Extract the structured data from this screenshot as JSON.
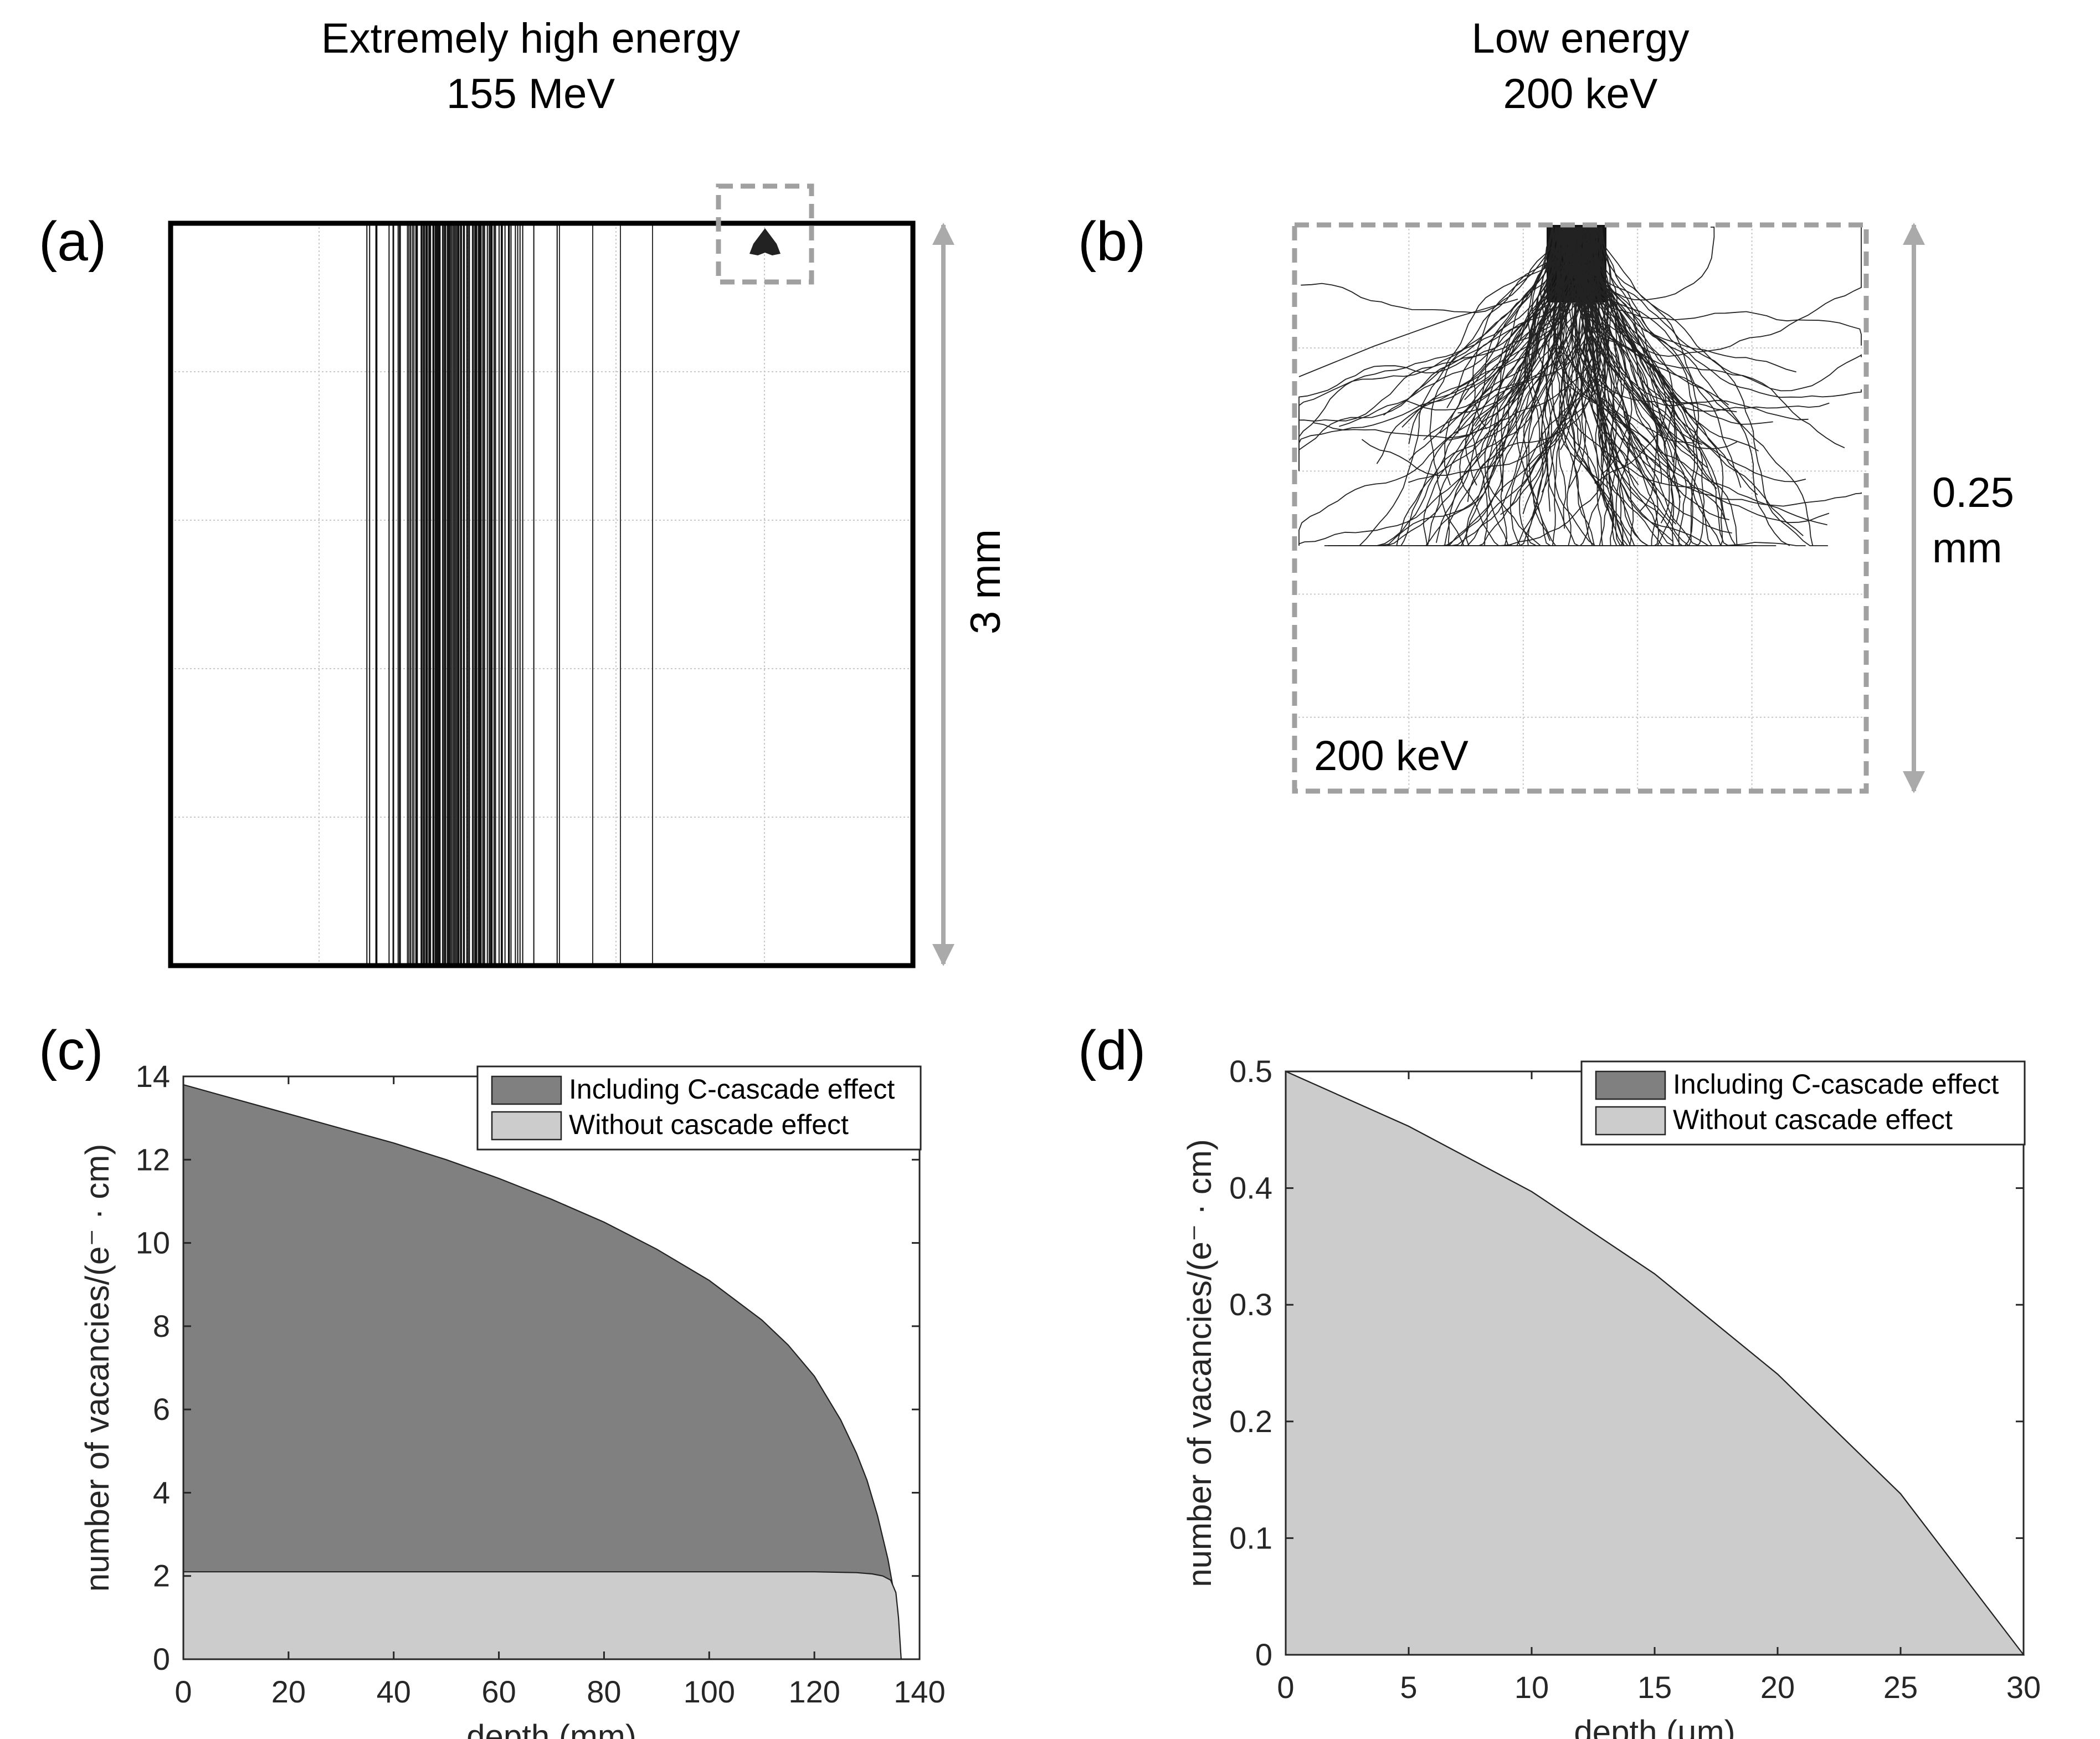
{
  "columns": {
    "left": {
      "line1": "Extremely high energy",
      "line2": "155 MeV"
    },
    "right": {
      "line1": "Low energy",
      "line2": "200 keV"
    }
  },
  "panels": {
    "a": {
      "label": "(a)",
      "scale_label": "3 mm"
    },
    "b": {
      "label": "(b)",
      "scale_label_line1": "0.25",
      "scale_label_line2": "mm",
      "inset_label": "200 keV"
    },
    "c": {
      "label": "(c)"
    },
    "d": {
      "label": "(d)"
    }
  },
  "colors": {
    "including": "#808080",
    "without": "#cccccc",
    "scale_arrow": "#aaaaaa",
    "inset_box": "#a0a0a0",
    "grid": "#c8c8c8"
  },
  "chart_data": [
    {
      "panel": "c",
      "type": "area",
      "title": "",
      "xlabel": "depth (mm)",
      "ylabel": "number of vacancies/(e⁻ · cm)",
      "xlim": [
        0,
        140
      ],
      "ylim": [
        0,
        14
      ],
      "xticks": [
        0,
        20,
        40,
        60,
        80,
        100,
        120,
        140
      ],
      "yticks": [
        0,
        2,
        4,
        6,
        8,
        10,
        12,
        14
      ],
      "legend": {
        "position": "top-right",
        "entries": [
          "Including C-cascade effect",
          "Without cascade effect"
        ]
      },
      "series": [
        {
          "name": "Including C-cascade effect",
          "color": "#808080",
          "x": [
            0,
            10,
            20,
            30,
            40,
            50,
            60,
            70,
            80,
            90,
            100,
            110,
            115,
            120,
            125,
            128,
            130,
            132,
            134,
            135,
            136,
            136.5
          ],
          "y": [
            13.8,
            13.45,
            13.1,
            12.75,
            12.4,
            12.0,
            11.55,
            11.05,
            10.5,
            9.85,
            9.1,
            8.15,
            7.55,
            6.8,
            5.75,
            4.95,
            4.3,
            3.45,
            2.4,
            1.7,
            0.8,
            0
          ]
        },
        {
          "name": "Without cascade effect",
          "color": "#cccccc",
          "x": [
            0,
            20,
            40,
            60,
            80,
            100,
            120,
            128,
            131,
            133,
            134.5,
            135.5,
            136,
            136.5
          ],
          "y": [
            2.1,
            2.1,
            2.1,
            2.1,
            2.1,
            2.1,
            2.1,
            2.08,
            2.05,
            2.0,
            1.9,
            1.6,
            1.0,
            0
          ]
        }
      ]
    },
    {
      "panel": "d",
      "type": "area",
      "title": "",
      "xlabel": "depth (μm)",
      "ylabel": "number of vacancies/(e⁻ · cm)",
      "xlim": [
        0,
        30
      ],
      "ylim": [
        0,
        0.5
      ],
      "xticks": [
        0,
        5,
        10,
        15,
        20,
        25,
        30
      ],
      "yticks": [
        0,
        0.1,
        0.2,
        0.3,
        0.4,
        0.5
      ],
      "legend": {
        "position": "top-right",
        "entries": [
          "Including C-cascade effect",
          "Without cascade effect"
        ]
      },
      "series": [
        {
          "name": "Including C-cascade effect",
          "color": "#808080",
          "x": [
            0,
            5,
            10,
            15,
            20,
            25,
            30
          ],
          "y": [
            0.5,
            0.453,
            0.397,
            0.3265,
            0.2405,
            0.138,
            0
          ]
        },
        {
          "name": "Without cascade effect",
          "color": "#cccccc",
          "x": [
            0,
            5,
            10,
            15,
            20,
            25,
            30
          ],
          "y": [
            0.5,
            0.453,
            0.397,
            0.3265,
            0.2405,
            0.138,
            0
          ]
        }
      ]
    }
  ]
}
